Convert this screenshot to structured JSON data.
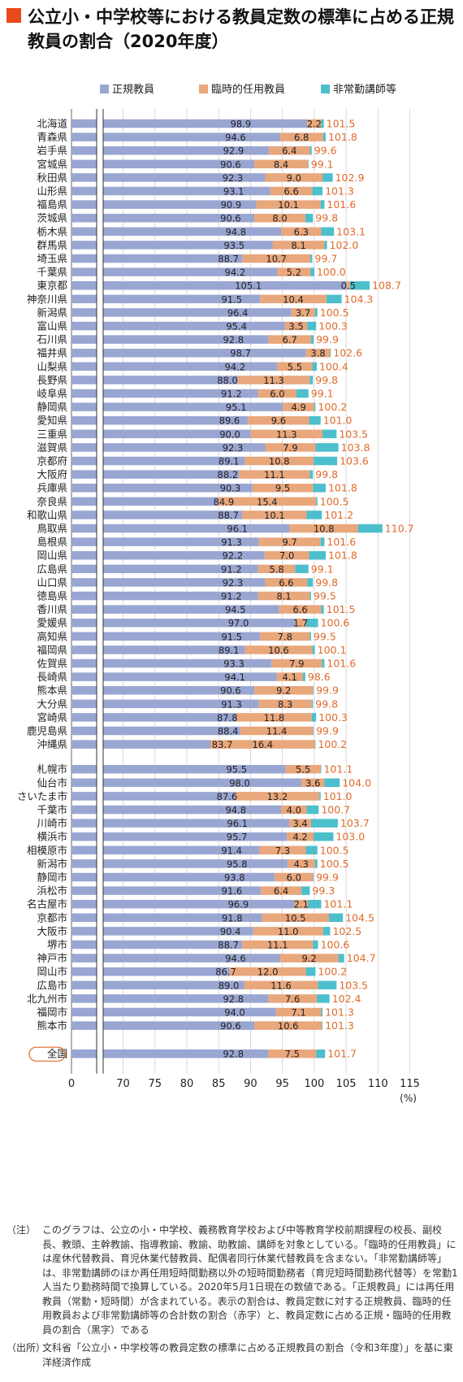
{
  "title": "公立小・中学校等における教員定数の標準に占める正規教員の割合（2020年度）",
  "colors": {
    "accent": "#e8491d",
    "regular": "#9aa6d2",
    "temporary": "#e9a77c",
    "parttime": "#4dbfcc",
    "total_text": "#e06a2a"
  },
  "chart_data": {
    "type": "bar",
    "stacked": true,
    "orientation": "horizontal",
    "series_names": [
      "正規教員",
      "臨時的任用教員",
      "非常勤講師等"
    ],
    "x_ticks": [
      "0",
      "70",
      "75",
      "80",
      "85",
      "90",
      "95",
      "100",
      "105",
      "110",
      "115"
    ],
    "x_unit": "(%)",
    "axis_break": [
      0,
      67
    ],
    "xlim": [
      67,
      115
    ],
    "prefectures": [
      {
        "name": "北海道",
        "regular": 98.9,
        "temporary": 2.2,
        "parttime": 0.4,
        "total": 101.5
      },
      {
        "name": "青森県",
        "regular": 94.6,
        "temporary": 6.8,
        "parttime": 0.4,
        "total": 101.8
      },
      {
        "name": "岩手県",
        "regular": 92.9,
        "temporary": 6.4,
        "parttime": 0.3,
        "total": 99.6
      },
      {
        "name": "宮城県",
        "regular": 90.6,
        "temporary": 8.4,
        "parttime": 0.1,
        "total": 99.1
      },
      {
        "name": "秋田県",
        "regular": 92.3,
        "temporary": 9.0,
        "parttime": 1.6,
        "total": 102.9
      },
      {
        "name": "山形県",
        "regular": 93.1,
        "temporary": 6.6,
        "parttime": 1.6,
        "total": 101.3
      },
      {
        "name": "福島県",
        "regular": 90.9,
        "temporary": 10.1,
        "parttime": 0.6,
        "total": 101.6
      },
      {
        "name": "茨城県",
        "regular": 90.6,
        "temporary": 8.0,
        "parttime": 1.2,
        "total": 99.8
      },
      {
        "name": "栃木県",
        "regular": 94.8,
        "temporary": 6.3,
        "parttime": 2.0,
        "total": 103.1
      },
      {
        "name": "群馬県",
        "regular": 93.5,
        "temporary": 8.1,
        "parttime": 0.4,
        "total": 102.0
      },
      {
        "name": "埼玉県",
        "regular": 88.7,
        "temporary": 10.7,
        "parttime": 0.3,
        "total": 99.7
      },
      {
        "name": "千葉県",
        "regular": 94.2,
        "temporary": 5.2,
        "parttime": 0.6,
        "total": 100.0
      },
      {
        "name": "東京都",
        "regular": 105.1,
        "temporary": 0.5,
        "parttime": 3.1,
        "total": 108.7
      },
      {
        "name": "神奈川県",
        "regular": 91.5,
        "temporary": 10.4,
        "parttime": 2.4,
        "total": 104.3
      },
      {
        "name": "新潟県",
        "regular": 96.4,
        "temporary": 3.7,
        "parttime": 0.4,
        "total": 100.5
      },
      {
        "name": "富山県",
        "regular": 95.4,
        "temporary": 3.5,
        "parttime": 1.4,
        "total": 100.3
      },
      {
        "name": "石川県",
        "regular": 92.8,
        "temporary": 6.7,
        "parttime": 0.4,
        "total": 99.9
      },
      {
        "name": "福井県",
        "regular": 98.7,
        "temporary": 3.8,
        "parttime": 0.1,
        "total": 102.6
      },
      {
        "name": "山梨県",
        "regular": 94.2,
        "temporary": 5.5,
        "parttime": 0.7,
        "total": 100.4
      },
      {
        "name": "長野県",
        "regular": 88.0,
        "temporary": 11.3,
        "parttime": 0.5,
        "total": 99.8
      },
      {
        "name": "岐阜県",
        "regular": 91.2,
        "temporary": 6.0,
        "parttime": 1.9,
        "total": 99.1
      },
      {
        "name": "静岡県",
        "regular": 95.1,
        "temporary": 4.9,
        "parttime": 0.2,
        "total": 100.2
      },
      {
        "name": "愛知県",
        "regular": 89.6,
        "temporary": 9.6,
        "parttime": 1.8,
        "total": 101.0
      },
      {
        "name": "三重県",
        "regular": 90.0,
        "temporary": 11.3,
        "parttime": 2.2,
        "total": 103.5
      },
      {
        "name": "滋賀県",
        "regular": 92.3,
        "temporary": 7.9,
        "parttime": 3.6,
        "total": 103.8
      },
      {
        "name": "京都府",
        "regular": 89.1,
        "temporary": 10.8,
        "parttime": 3.7,
        "total": 103.6
      },
      {
        "name": "大阪府",
        "regular": 88.2,
        "temporary": 11.1,
        "parttime": 0.5,
        "total": 99.8
      },
      {
        "name": "兵庫県",
        "regular": 90.3,
        "temporary": 9.5,
        "parttime": 2.0,
        "total": 101.8
      },
      {
        "name": "奈良県",
        "regular": 84.9,
        "temporary": 15.4,
        "parttime": 0.2,
        "total": 100.5
      },
      {
        "name": "和歌山県",
        "regular": 88.7,
        "temporary": 10.1,
        "parttime": 2.4,
        "total": 101.2
      },
      {
        "name": "鳥取県",
        "regular": 96.1,
        "temporary": 10.8,
        "parttime": 3.8,
        "total": 110.7
      },
      {
        "name": "島根県",
        "regular": 91.3,
        "temporary": 9.7,
        "parttime": 0.6,
        "total": 101.6
      },
      {
        "name": "岡山県",
        "regular": 92.2,
        "temporary": 7.0,
        "parttime": 2.6,
        "total": 101.8
      },
      {
        "name": "広島県",
        "regular": 91.2,
        "temporary": 5.8,
        "parttime": 2.1,
        "total": 99.1
      },
      {
        "name": "山口県",
        "regular": 92.3,
        "temporary": 6.6,
        "parttime": 0.9,
        "total": 99.8
      },
      {
        "name": "徳島県",
        "regular": 91.2,
        "temporary": 8.1,
        "parttime": 0.2,
        "total": 99.5
      },
      {
        "name": "香川県",
        "regular": 94.5,
        "temporary": 6.6,
        "parttime": 0.4,
        "total": 101.5
      },
      {
        "name": "愛媛県",
        "regular": 97.0,
        "temporary": 1.7,
        "parttime": 1.9,
        "total": 100.6
      },
      {
        "name": "高知県",
        "regular": 91.5,
        "temporary": 7.8,
        "parttime": 0.2,
        "total": 99.5
      },
      {
        "name": "福岡県",
        "regular": 89.1,
        "temporary": 10.6,
        "parttime": 0.4,
        "total": 100.1
      },
      {
        "name": "佐賀県",
        "regular": 93.3,
        "temporary": 7.9,
        "parttime": 0.4,
        "total": 101.6
      },
      {
        "name": "長崎県",
        "regular": 94.1,
        "temporary": 4.1,
        "parttime": 0.4,
        "total": 98.6
      },
      {
        "name": "熊本県",
        "regular": 90.6,
        "temporary": 9.2,
        "parttime": 0.1,
        "total": 99.9
      },
      {
        "name": "大分県",
        "regular": 91.3,
        "temporary": 8.3,
        "parttime": 0.2,
        "total": 99.8
      },
      {
        "name": "宮崎県",
        "regular": 87.8,
        "temporary": 11.8,
        "parttime": 0.7,
        "total": 100.3
      },
      {
        "name": "鹿児島県",
        "regular": 88.4,
        "temporary": 11.4,
        "parttime": 0.1,
        "total": 99.9
      },
      {
        "name": "沖縄県",
        "regular": 83.7,
        "temporary": 16.4,
        "parttime": 0.1,
        "total": 100.2
      }
    ],
    "cities": [
      {
        "name": "札幌市",
        "regular": 95.5,
        "temporary": 5.5,
        "parttime": 0.1,
        "total": 101.1
      },
      {
        "name": "仙台市",
        "regular": 98.0,
        "temporary": 3.6,
        "parttime": 2.4,
        "total": 104.0
      },
      {
        "name": "さいたま市",
        "regular": 87.6,
        "temporary": 13.2,
        "parttime": 0.2,
        "total": 101.0
      },
      {
        "name": "千葉市",
        "regular": 94.8,
        "temporary": 4.0,
        "parttime": 1.9,
        "total": 100.7
      },
      {
        "name": "川崎市",
        "regular": 96.1,
        "temporary": 3.4,
        "parttime": 4.2,
        "total": 103.7
      },
      {
        "name": "横浜市",
        "regular": 95.7,
        "temporary": 4.2,
        "parttime": 3.1,
        "total": 103.0
      },
      {
        "name": "相模原市",
        "regular": 91.4,
        "temporary": 7.3,
        "parttime": 1.8,
        "total": 100.5
      },
      {
        "name": "新潟市",
        "regular": 95.8,
        "temporary": 4.3,
        "parttime": 0.4,
        "total": 100.5
      },
      {
        "name": "静岡市",
        "regular": 93.8,
        "temporary": 6.0,
        "parttime": 0.1,
        "total": 99.9
      },
      {
        "name": "浜松市",
        "regular": 91.6,
        "temporary": 6.4,
        "parttime": 1.3,
        "total": 99.3
      },
      {
        "name": "名古屋市",
        "regular": 96.9,
        "temporary": 2.1,
        "parttime": 2.1,
        "total": 101.1
      },
      {
        "name": "京都市",
        "regular": 91.8,
        "temporary": 10.5,
        "parttime": 2.2,
        "total": 104.5
      },
      {
        "name": "大阪市",
        "regular": 90.4,
        "temporary": 11.0,
        "parttime": 1.1,
        "total": 102.5
      },
      {
        "name": "堺市",
        "regular": 88.7,
        "temporary": 11.1,
        "parttime": 0.8,
        "total": 100.6
      },
      {
        "name": "神戸市",
        "regular": 94.6,
        "temporary": 9.2,
        "parttime": 0.9,
        "total": 104.7
      },
      {
        "name": "岡山市",
        "regular": 86.7,
        "temporary": 12.0,
        "parttime": 1.5,
        "total": 100.2
      },
      {
        "name": "広島市",
        "regular": 89.0,
        "temporary": 11.6,
        "parttime": 2.9,
        "total": 103.5
      },
      {
        "name": "北九州市",
        "regular": 92.8,
        "temporary": 7.6,
        "parttime": 2.0,
        "total": 102.4
      },
      {
        "name": "福岡市",
        "regular": 94.0,
        "temporary": 7.1,
        "parttime": 0.2,
        "total": 101.3
      },
      {
        "name": "熊本市",
        "regular": 90.6,
        "temporary": 10.6,
        "parttime": 0.1,
        "total": 101.3
      }
    ],
    "national": {
      "name": "全国",
      "regular": 92.8,
      "temporary": 7.5,
      "parttime": 1.4,
      "total": 101.7
    }
  },
  "note": {
    "label": "（注）",
    "text": "このグラフは、公立の小・中学校、義務教育学校および中等教育学校前期課程の校長、副校長、教頭、主幹教諭、指導教諭、教諭、助教諭、講師を対象としている。「臨時的任用教員」には産休代替教員、育児休業代替教員、配偶者同行休業代替教員を含まない。「非常勤講師等」は、非常勤講師のほか再任用短時間勤務以外の短時間勤務者（育児短時間勤務代替等）を常勤1人当たり勤務時間で換算している。2020年5月1日現在の数値である。「正規教員」には再任用教員（常勤・短時間）が含まれている。表示の割合は、教員定数に対する正規教員、臨時的任用教員および非常勤講師等の合計数の割合（赤字）と、教員定数に占める正規・臨時的任用教員の割合（黒字）である"
  },
  "source": {
    "label": "（出所）",
    "text": "文科省「公立小・中学校等の教員定数の標準に占める正規教員の割合（令和3年度）」を基に東洋経済作成"
  }
}
